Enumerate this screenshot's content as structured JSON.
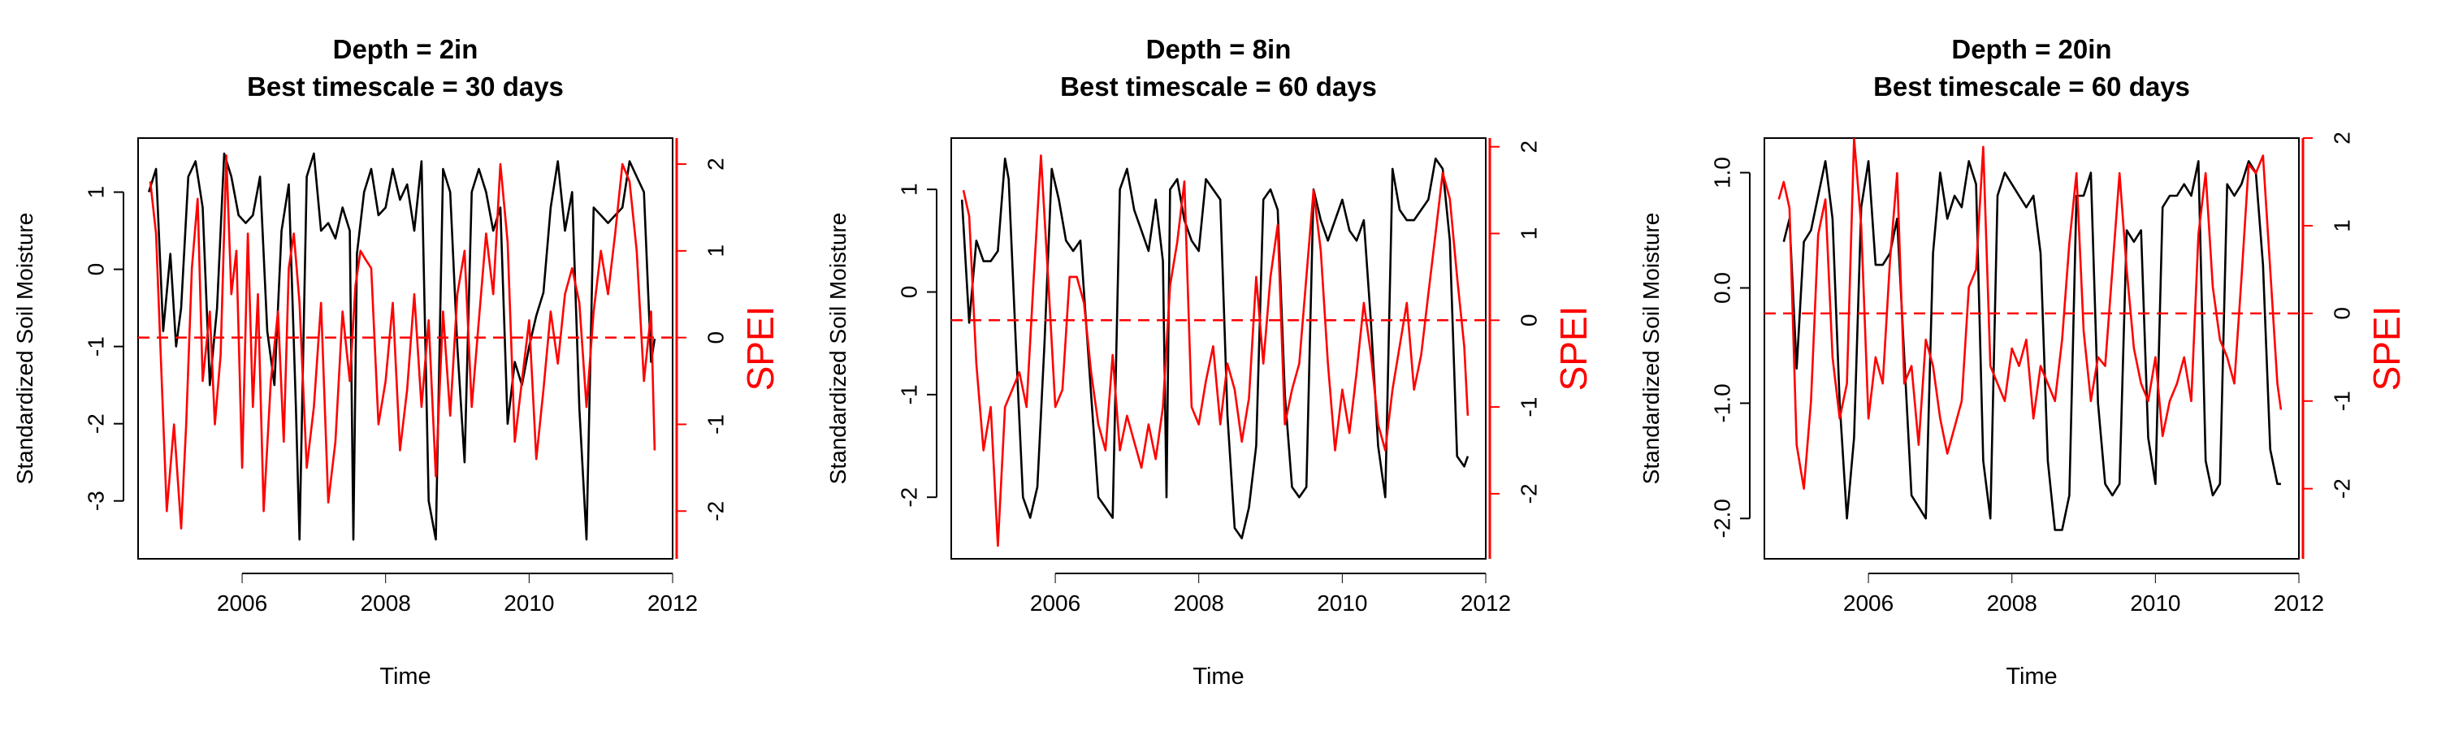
{
  "chart_data": [
    {
      "type": "line",
      "title": [
        "Depth = 2in",
        "Best timescale = 30 days"
      ],
      "xlabel": "Time",
      "ylabel_left": "Standardized Soil Moisture",
      "ylabel_right": "SPEI",
      "xlim": [
        2004.55,
        2012.0
      ],
      "x_ticks": [
        2006,
        2008,
        2010,
        2012
      ],
      "ylim_left": [
        -3.75,
        1.7
      ],
      "y_ticks_left": [
        -3,
        -2,
        -1,
        0,
        1
      ],
      "ylim_right": [
        -2.55,
        2.3
      ],
      "y_ticks_right": [
        -2,
        -1,
        0,
        1,
        2
      ],
      "spei_zero_line": 0,
      "colors": {
        "soil_moisture": "#000000",
        "spei": "#ff0000",
        "spei_axis": "#ff0000"
      },
      "series": [
        {
          "axis": "left",
          "x": [
            2004.7,
            2004.8,
            2004.9,
            2005.0,
            2005.08,
            2005.15,
            2005.25,
            2005.35,
            2005.45,
            2005.55,
            2005.65,
            2005.75,
            2005.85,
            2005.95,
            2006.05,
            2006.15,
            2006.25,
            2006.35,
            2006.45,
            2006.55,
            2006.65,
            2006.75,
            2006.8,
            2006.9,
            2007.0,
            2007.1,
            2007.2,
            2007.3,
            2007.4,
            2007.5,
            2007.55,
            2007.6,
            2007.7,
            2007.8,
            2007.9,
            2008.0,
            2008.1,
            2008.2,
            2008.3,
            2008.4,
            2008.5,
            2008.6,
            2008.7,
            2008.8,
            2008.9,
            2009.0,
            2009.1,
            2009.2,
            2009.3,
            2009.4,
            2009.5,
            2009.6,
            2009.7,
            2009.8,
            2009.9,
            2010.0,
            2010.1,
            2010.2,
            2010.3,
            2010.4,
            2010.5,
            2010.6,
            2010.7,
            2010.8,
            2010.9,
            2011.0,
            2011.1,
            2011.2,
            2011.3,
            2011.4,
            2011.5,
            2011.6,
            2011.7,
            2011.75
          ],
          "y": [
            1.0,
            1.3,
            -0.8,
            0.2,
            -1.0,
            -0.5,
            1.2,
            1.4,
            0.8,
            -1.5,
            -0.5,
            1.5,
            1.2,
            0.7,
            0.6,
            0.7,
            1.2,
            -0.8,
            -1.5,
            0.5,
            1.1,
            -1.8,
            -3.5,
            1.2,
            1.5,
            0.5,
            0.6,
            0.4,
            0.8,
            0.5,
            -3.5,
            0.2,
            1.0,
            1.3,
            0.7,
            0.8,
            1.3,
            0.9,
            1.1,
            0.5,
            1.4,
            -3.0,
            -3.5,
            1.3,
            1.0,
            -1.0,
            -2.5,
            1.0,
            1.3,
            1.0,
            0.5,
            0.8,
            -2.0,
            -1.2,
            -1.5,
            -1.0,
            -0.6,
            -0.3,
            0.8,
            1.4,
            0.5,
            1.0,
            -1.8,
            -3.5,
            0.8,
            0.7,
            0.6,
            0.7,
            0.8,
            1.4,
            1.2,
            1.0,
            -1.2,
            -0.9
          ]
        },
        {
          "axis": "right",
          "x": [
            2004.72,
            2004.8,
            2004.88,
            2004.95,
            2005.05,
            2005.15,
            2005.22,
            2005.3,
            2005.38,
            2005.45,
            2005.55,
            2005.62,
            2005.7,
            2005.78,
            2005.85,
            2005.92,
            2006.0,
            2006.08,
            2006.15,
            2006.22,
            2006.3,
            2006.4,
            2006.5,
            2006.58,
            2006.65,
            2006.72,
            2006.8,
            2006.9,
            2007.0,
            2007.1,
            2007.2,
            2007.3,
            2007.4,
            2007.5,
            2007.58,
            2007.65,
            2007.72,
            2007.8,
            2007.9,
            2008.0,
            2008.1,
            2008.2,
            2008.3,
            2008.4,
            2008.5,
            2008.6,
            2008.7,
            2008.8,
            2008.9,
            2009.0,
            2009.1,
            2009.2,
            2009.3,
            2009.4,
            2009.5,
            2009.6,
            2009.7,
            2009.8,
            2009.9,
            2010.0,
            2010.1,
            2010.2,
            2010.3,
            2010.4,
            2010.5,
            2010.6,
            2010.7,
            2010.8,
            2010.9,
            2011.0,
            2011.1,
            2011.2,
            2011.3,
            2011.4,
            2011.5,
            2011.6,
            2011.7,
            2011.75
          ],
          "y": [
            1.8,
            1.2,
            -0.5,
            -2.0,
            -1.0,
            -2.2,
            -1.0,
            0.8,
            1.6,
            -0.5,
            0.3,
            -1.0,
            -0.2,
            2.1,
            0.5,
            1.0,
            -1.5,
            1.2,
            -0.8,
            0.5,
            -2.0,
            -0.5,
            0.3,
            -1.2,
            0.8,
            1.2,
            0.4,
            -1.5,
            -0.8,
            0.4,
            -1.9,
            -1.2,
            0.3,
            -0.5,
            0.6,
            1.0,
            0.9,
            0.8,
            -1.0,
            -0.5,
            0.4,
            -1.3,
            -0.6,
            0.5,
            -0.8,
            0.2,
            -1.6,
            0.3,
            -0.9,
            0.5,
            1.0,
            -0.8,
            0.2,
            1.2,
            0.5,
            2.0,
            1.1,
            -1.2,
            -0.5,
            0.2,
            -1.4,
            -0.6,
            0.3,
            -0.3,
            0.5,
            0.8,
            0.4,
            -0.8,
            0.3,
            1.0,
            0.5,
            1.2,
            2.0,
            1.8,
            1.0,
            -0.5,
            0.3,
            -1.3
          ]
        }
      ]
    },
    {
      "type": "line",
      "title": [
        "Depth = 8in",
        "Best timescale = 60 days"
      ],
      "xlabel": "Time",
      "ylabel_left": "Standardized Soil Moisture",
      "ylabel_right": "SPEI",
      "xlim": [
        2004.55,
        2012.0
      ],
      "x_ticks": [
        2006,
        2008,
        2010,
        2012
      ],
      "ylim_left": [
        -2.6,
        1.5
      ],
      "y_ticks_left": [
        -2,
        -1,
        0,
        1
      ],
      "ylim_right": [
        -2.75,
        2.1
      ],
      "y_ticks_right": [
        -2,
        -1,
        0,
        1,
        2
      ],
      "spei_zero_line": 0,
      "colors": {
        "soil_moisture": "#000000",
        "spei": "#ff0000",
        "spei_axis": "#ff0000"
      },
      "series": [
        {
          "axis": "left",
          "x": [
            2004.7,
            2004.8,
            2004.9,
            2005.0,
            2005.1,
            2005.2,
            2005.3,
            2005.35,
            2005.45,
            2005.55,
            2005.65,
            2005.75,
            2005.85,
            2005.95,
            2006.05,
            2006.15,
            2006.25,
            2006.35,
            2006.5,
            2006.6,
            2006.7,
            2006.8,
            2006.9,
            2007.0,
            2007.1,
            2007.2,
            2007.3,
            2007.4,
            2007.5,
            2007.55,
            2007.6,
            2007.7,
            2007.8,
            2007.9,
            2008.0,
            2008.1,
            2008.2,
            2008.3,
            2008.4,
            2008.5,
            2008.6,
            2008.7,
            2008.8,
            2008.9,
            2009.0,
            2009.1,
            2009.2,
            2009.3,
            2009.4,
            2009.5,
            2009.6,
            2009.7,
            2009.8,
            2009.9,
            2010.0,
            2010.1,
            2010.2,
            2010.3,
            2010.4,
            2010.5,
            2010.6,
            2010.7,
            2010.8,
            2010.9,
            2011.0,
            2011.1,
            2011.2,
            2011.3,
            2011.4,
            2011.5,
            2011.6,
            2011.7,
            2011.75
          ],
          "y": [
            0.9,
            -0.3,
            0.5,
            0.3,
            0.3,
            0.4,
            1.3,
            1.1,
            -0.5,
            -2.0,
            -2.2,
            -1.9,
            -0.5,
            1.2,
            0.9,
            0.5,
            0.4,
            0.5,
            -1.0,
            -2.0,
            -2.1,
            -2.2,
            1.0,
            1.2,
            0.8,
            0.6,
            0.4,
            0.9,
            0.3,
            -2.0,
            1.0,
            1.1,
            0.7,
            0.5,
            0.4,
            1.1,
            1.0,
            0.9,
            -1.2,
            -2.3,
            -2.4,
            -2.1,
            -1.5,
            0.9,
            1.0,
            0.8,
            -1.0,
            -1.9,
            -2.0,
            -1.9,
            1.0,
            0.7,
            0.5,
            0.7,
            0.9,
            0.6,
            0.5,
            0.7,
            -0.3,
            -1.5,
            -2.0,
            1.2,
            0.8,
            0.7,
            0.7,
            0.8,
            0.9,
            1.3,
            1.2,
            0.5,
            -1.6,
            -1.7,
            -1.6
          ]
        },
        {
          "axis": "right",
          "x": [
            2004.72,
            2004.8,
            2004.9,
            2005.0,
            2005.1,
            2005.2,
            2005.3,
            2005.4,
            2005.5,
            2005.6,
            2005.7,
            2005.8,
            2005.9,
            2006.0,
            2006.1,
            2006.2,
            2006.3,
            2006.4,
            2006.5,
            2006.6,
            2006.7,
            2006.8,
            2006.9,
            2007.0,
            2007.1,
            2007.2,
            2007.3,
            2007.4,
            2007.5,
            2007.6,
            2007.7,
            2007.8,
            2007.9,
            2008.0,
            2008.1,
            2008.2,
            2008.3,
            2008.4,
            2008.5,
            2008.6,
            2008.7,
            2008.8,
            2008.9,
            2009.0,
            2009.1,
            2009.2,
            2009.3,
            2009.4,
            2009.5,
            2009.6,
            2009.7,
            2009.8,
            2009.9,
            2010.0,
            2010.1,
            2010.2,
            2010.3,
            2010.4,
            2010.5,
            2010.6,
            2010.7,
            2010.8,
            2010.9,
            2011.0,
            2011.1,
            2011.2,
            2011.3,
            2011.4,
            2011.5,
            2011.6,
            2011.7,
            2011.75
          ],
          "y": [
            1.5,
            1.2,
            -0.5,
            -1.5,
            -1.0,
            -2.6,
            -1.0,
            -0.8,
            -0.6,
            -1.0,
            0.5,
            1.9,
            0.5,
            -1.0,
            -0.8,
            0.5,
            0.5,
            0.2,
            -0.6,
            -1.2,
            -1.5,
            -0.4,
            -1.5,
            -1.1,
            -1.4,
            -1.7,
            -1.2,
            -1.6,
            -1.0,
            0.4,
            0.9,
            1.6,
            -1.0,
            -1.2,
            -0.7,
            -0.3,
            -1.2,
            -0.5,
            -0.8,
            -1.4,
            -0.9,
            0.5,
            -0.5,
            0.5,
            1.1,
            -1.2,
            -0.8,
            -0.5,
            0.5,
            1.5,
            0.8,
            -0.5,
            -1.5,
            -0.8,
            -1.3,
            -0.6,
            0.2,
            -0.4,
            -1.2,
            -1.5,
            -0.8,
            -0.3,
            0.2,
            -0.8,
            -0.4,
            0.3,
            1.0,
            1.7,
            1.4,
            0.5,
            -0.3,
            -1.1
          ]
        }
      ]
    },
    {
      "type": "line",
      "title": [
        "Depth = 20in",
        "Best timescale = 60 days"
      ],
      "xlabel": "Time",
      "ylabel_left": "Standardized Soil Moisture",
      "ylabel_right": "SPEI",
      "xlim": [
        2004.55,
        2012.0
      ],
      "x_ticks": [
        2006,
        2008,
        2010,
        2012
      ],
      "y_ticks_left": [
        -2.0,
        -1.0,
        0.0,
        1.0
      ],
      "y_tick_labels_left": [
        "-2.0",
        "-1.0",
        "0.0",
        "1.0"
      ],
      "ylim_left": [
        -2.35,
        1.3
      ],
      "ylim_right": [
        -2.8,
        2.0
      ],
      "y_ticks_right": [
        -2,
        -1,
        0,
        1,
        2
      ],
      "spei_zero_line": 0,
      "colors": {
        "soil_moisture": "#000000",
        "spei": "#ff0000",
        "spei_axis": "#ff0000"
      },
      "series": [
        {
          "axis": "left",
          "x": [
            2004.82,
            2004.9,
            2005.0,
            2005.1,
            2005.2,
            2005.3,
            2005.4,
            2005.5,
            2005.6,
            2005.7,
            2005.8,
            2005.9,
            2006.0,
            2006.1,
            2006.2,
            2006.3,
            2006.4,
            2006.5,
            2006.6,
            2006.7,
            2006.8,
            2006.9,
            2007.0,
            2007.1,
            2007.2,
            2007.3,
            2007.4,
            2007.5,
            2007.6,
            2007.7,
            2007.8,
            2007.9,
            2008.0,
            2008.1,
            2008.2,
            2008.3,
            2008.4,
            2008.5,
            2008.6,
            2008.7,
            2008.8,
            2008.9,
            2009.0,
            2009.1,
            2009.2,
            2009.3,
            2009.4,
            2009.5,
            2009.6,
            2009.7,
            2009.8,
            2009.9,
            2010.0,
            2010.1,
            2010.2,
            2010.3,
            2010.4,
            2010.5,
            2010.6,
            2010.7,
            2010.8,
            2010.9,
            2011.0,
            2011.1,
            2011.2,
            2011.3,
            2011.4,
            2011.5,
            2011.6,
            2011.7,
            2011.75
          ],
          "y": [
            0.4,
            0.6,
            -0.7,
            0.4,
            0.5,
            0.8,
            1.1,
            0.6,
            -1.0,
            -2.0,
            -1.3,
            0.7,
            1.1,
            0.2,
            0.2,
            0.3,
            0.6,
            -0.6,
            -1.8,
            -1.9,
            -2.0,
            0.3,
            1.0,
            0.6,
            0.8,
            0.7,
            1.1,
            0.9,
            -1.5,
            -2.0,
            0.8,
            1.0,
            0.9,
            0.8,
            0.7,
            0.8,
            0.3,
            -1.5,
            -2.1,
            -2.1,
            -1.8,
            0.8,
            0.8,
            1.0,
            -1.0,
            -1.7,
            -1.8,
            -1.7,
            0.5,
            0.4,
            0.5,
            -1.3,
            -1.7,
            0.7,
            0.8,
            0.8,
            0.9,
            0.8,
            1.1,
            -1.5,
            -1.8,
            -1.7,
            0.9,
            0.8,
            0.9,
            1.1,
            1.0,
            0.2,
            -1.4,
            -1.7,
            -1.7
          ]
        },
        {
          "axis": "right",
          "x": [
            2004.75,
            2004.82,
            2004.9,
            2005.0,
            2005.1,
            2005.2,
            2005.3,
            2005.4,
            2005.5,
            2005.6,
            2005.7,
            2005.8,
            2005.9,
            2006.0,
            2006.1,
            2006.2,
            2006.3,
            2006.4,
            2006.5,
            2006.6,
            2006.7,
            2006.8,
            2006.9,
            2007.0,
            2007.1,
            2007.2,
            2007.3,
            2007.4,
            2007.5,
            2007.6,
            2007.7,
            2007.8,
            2007.9,
            2008.0,
            2008.1,
            2008.2,
            2008.3,
            2008.4,
            2008.5,
            2008.6,
            2008.7,
            2008.8,
            2008.9,
            2009.0,
            2009.1,
            2009.2,
            2009.3,
            2009.4,
            2009.5,
            2009.6,
            2009.7,
            2009.8,
            2009.9,
            2010.0,
            2010.1,
            2010.2,
            2010.3,
            2010.4,
            2010.5,
            2010.6,
            2010.7,
            2010.8,
            2010.9,
            2011.0,
            2011.1,
            2011.2,
            2011.3,
            2011.4,
            2011.5,
            2011.6,
            2011.7,
            2011.75
          ],
          "y": [
            1.3,
            1.5,
            1.2,
            -1.5,
            -2.0,
            -1.0,
            0.9,
            1.3,
            -0.5,
            -1.2,
            -0.8,
            2.0,
            1.0,
            -1.2,
            -0.5,
            -0.8,
            0.6,
            1.6,
            -0.8,
            -0.6,
            -1.5,
            -0.3,
            -0.6,
            -1.2,
            -1.6,
            -1.3,
            -1.0,
            0.3,
            0.5,
            1.9,
            -0.6,
            -0.8,
            -1.0,
            -0.4,
            -0.6,
            -0.3,
            -1.2,
            -0.6,
            -0.8,
            -1.0,
            -0.3,
            0.8,
            1.6,
            -0.2,
            -1.0,
            -0.5,
            -0.6,
            0.5,
            1.6,
            0.5,
            -0.4,
            -0.8,
            -1.0,
            -0.5,
            -1.4,
            -1.0,
            -0.8,
            -0.5,
            -1.0,
            0.9,
            1.6,
            0.3,
            -0.3,
            -0.5,
            -0.8,
            0.4,
            1.7,
            1.6,
            1.8,
            0.5,
            -0.8,
            -1.1
          ]
        }
      ]
    }
  ]
}
